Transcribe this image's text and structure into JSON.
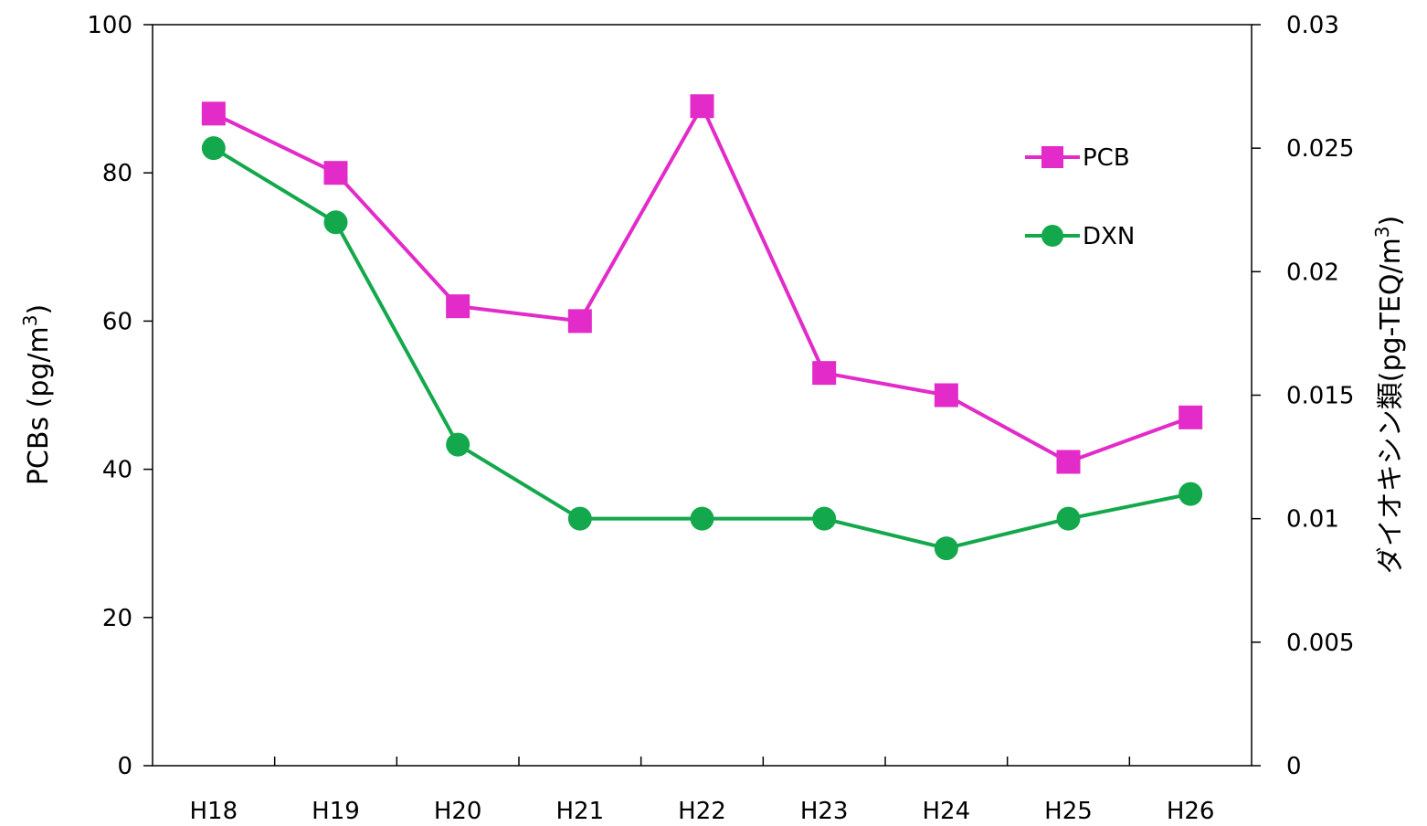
{
  "chart_data": {
    "type": "line",
    "categories": [
      "H18",
      "H19",
      "H20",
      "H21",
      "H22",
      "H23",
      "H24",
      "H25",
      "H26"
    ],
    "y_left": {
      "label": "PCBs (pg/m",
      "label_sup": "3",
      "label_tail": ")",
      "range": [
        0,
        100
      ],
      "ticks": [
        0,
        20,
        40,
        60,
        80,
        100
      ],
      "tick_labels": [
        "0",
        "20",
        "40",
        "60",
        "80",
        "100"
      ]
    },
    "y_right": {
      "label": "ダイオキシン類(pg-TEQ/m",
      "label_sup": "3",
      "label_tail": ")",
      "range": [
        0,
        0.03
      ],
      "ticks": [
        0,
        0.005,
        0.01,
        0.015,
        0.02,
        0.025,
        0.03
      ],
      "tick_labels": [
        "0",
        "0.005",
        "0.01",
        "0.015",
        "0.02",
        "0.025",
        "0.03"
      ]
    },
    "series": [
      {
        "name": "PCB",
        "axis": "left",
        "color": "#E22BC8",
        "marker": "square",
        "values": [
          88,
          80,
          62,
          60,
          89,
          53,
          50,
          41,
          47
        ]
      },
      {
        "name": "DXN",
        "axis": "right",
        "color": "#13A84B",
        "marker": "circle",
        "values": [
          0.025,
          0.022,
          0.013,
          0.01,
          0.01,
          0.01,
          0.0088,
          0.01,
          0.011
        ]
      }
    ],
    "grid": false,
    "legend_position": "top-right"
  }
}
